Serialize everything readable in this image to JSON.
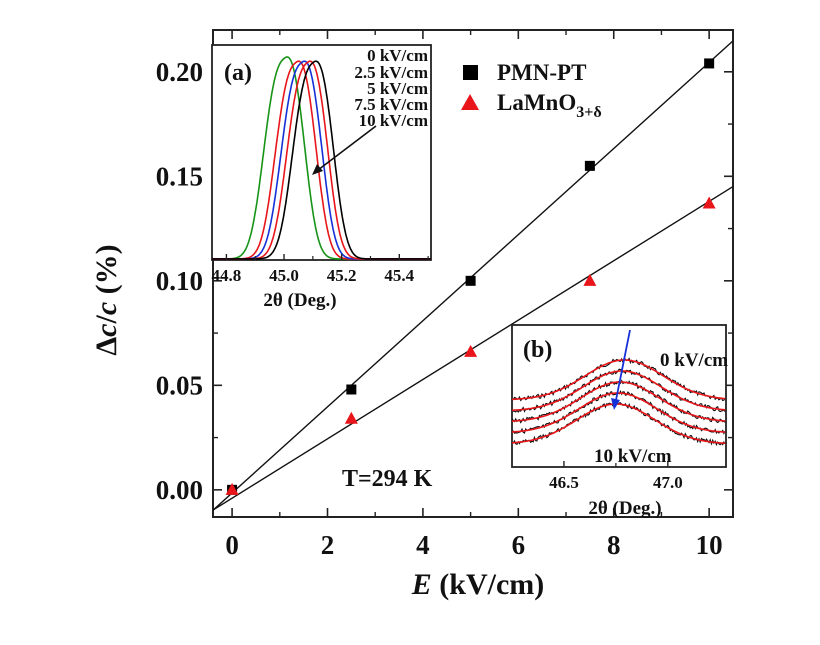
{
  "main_chart": {
    "xlabel_symbol": "E",
    "xlabel_unit": " (kV/cm)",
    "ylabel_prefix": "Δ",
    "ylabel_c1": "c",
    "ylabel_slash": "/",
    "ylabel_c2": "c",
    "ylabel_unit": " (%)",
    "temperature_text": "T=294 K",
    "legend": [
      {
        "label": "PMN-PT",
        "marker": "square",
        "color": "#000000"
      },
      {
        "label": "LaMnO",
        "sub": "3+δ",
        "marker": "triangle",
        "color": "#e8161b"
      }
    ]
  },
  "inset_a": {
    "panel_label": "(a)",
    "xlabel": "2θ (Deg.)",
    "xticks": [
      "44.8",
      "45.0",
      "45.2",
      "45.4"
    ],
    "field_labels": [
      "0 kV/cm",
      "2.5 kV/cm",
      "5 kV/cm",
      "7.5 kV/cm",
      "10 kV/cm"
    ]
  },
  "inset_b": {
    "panel_label": "(b)",
    "xlabel": "2θ (Deg.)",
    "xticks": [
      "46.5",
      "47.0"
    ],
    "label_top": "0 kV/cm",
    "label_bottom": "10 kV/cm"
  },
  "chart_data": [
    {
      "type": "scatter",
      "xlabel": "E (kV/cm)",
      "ylabel": "Δc/c (%)",
      "xlim": [
        -0.4,
        10.5
      ],
      "ylim": [
        -0.013,
        0.22
      ],
      "xticks": [
        "0",
        "2",
        "4",
        "6",
        "8",
        "10"
      ],
      "yticks": [
        "0.00",
        "0.05",
        "0.10",
        "0.15",
        "0.20"
      ],
      "series": [
        {
          "name": "PMN-PT",
          "x": [
            0,
            2.5,
            5,
            7.5,
            10
          ],
          "y": [
            0.0,
            0.048,
            0.1,
            0.155,
            0.204
          ],
          "fit": {
            "slope": 0.0206,
            "intercept": -0.0015
          },
          "color": "#000000"
        },
        {
          "name": "LaMnO3+δ",
          "x": [
            0,
            2.5,
            5,
            7.5,
            10
          ],
          "y": [
            0.0,
            0.034,
            0.066,
            0.1,
            0.137
          ],
          "fit": {
            "slope": 0.0142,
            "intercept": -0.004
          },
          "color": "#e8161b"
        }
      ],
      "annotations": [
        "T=294 K"
      ]
    },
    {
      "type": "line",
      "panel": "(a)",
      "xlabel": "2θ (Deg.)",
      "xlim": [
        44.75,
        45.51
      ],
      "xticks": [
        44.8,
        45.0,
        45.2,
        45.4
      ],
      "series": [
        {
          "name": "0 kV/cm",
          "color": "#000000",
          "peak": 45.1,
          "halfwidth": 0.075,
          "height": 0.93
        },
        {
          "name": "2.5 kV/cm",
          "color": "#e8161b",
          "peak": 45.08,
          "halfwidth": 0.075,
          "height": 0.93
        },
        {
          "name": "5 kV/cm",
          "color": "#1530d8",
          "peak": 45.06,
          "halfwidth": 0.075,
          "height": 0.93
        },
        {
          "name": "7.5 kV/cm",
          "color": "#e8161b",
          "peak": 45.04,
          "halfwidth": 0.075,
          "height": 0.93
        },
        {
          "name": "10 kV/cm",
          "color": "#179417",
          "peak": 45.0,
          "halfwidth": 0.075,
          "height": 0.95
        }
      ]
    },
    {
      "type": "line",
      "panel": "(b)",
      "xlabel": "2θ (Deg.)",
      "xlim": [
        46.25,
        47.28
      ],
      "xticks": [
        46.5,
        47.0
      ],
      "series": [
        {
          "name": "0 kV/cm",
          "peak": 46.79
        },
        {
          "name": "2.5 kV/cm",
          "peak": 46.78
        },
        {
          "name": "5 kV/cm",
          "peak": 46.77
        },
        {
          "name": "7.5 kV/cm",
          "peak": 46.76
        },
        {
          "name": "10 kV/cm",
          "peak": 46.75
        }
      ]
    }
  ]
}
